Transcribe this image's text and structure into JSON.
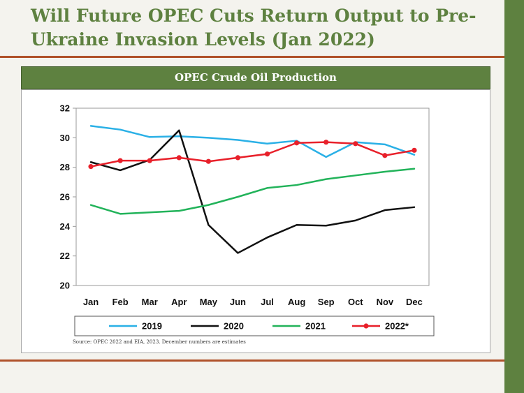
{
  "slide": {
    "title": "Will Future OPEC Cuts Return Output to Pre-Ukraine Invasion Levels (Jan 2022)",
    "source": "Source: OPEC 2022 and EIA, 2023. December numbers are estimates"
  },
  "colors": {
    "accent_green": "#5e8140",
    "rule_rust": "#b0522a",
    "series_2019": "#2ab0e6",
    "series_2020": "#111111",
    "series_2021": "#22b35a",
    "series_2022": "#e8202a"
  },
  "chart_data": {
    "type": "line",
    "title": "OPEC Crude Oil Production",
    "xlabel": "",
    "ylabel": "",
    "categories": [
      "Jan",
      "Feb",
      "Mar",
      "Apr",
      "May",
      "Jun",
      "Jul",
      "Aug",
      "Sep",
      "Oct",
      "Nov",
      "Dec"
    ],
    "ylim": [
      20,
      32
    ],
    "yticks": [
      20,
      22,
      24,
      26,
      28,
      30,
      32
    ],
    "grid": false,
    "legend": "bottom",
    "series": [
      {
        "name": "2019",
        "color": "#2ab0e6",
        "markers": false,
        "values": [
          30.8,
          30.55,
          30.05,
          30.1,
          30.0,
          29.85,
          29.6,
          29.8,
          28.7,
          29.7,
          29.55,
          28.85
        ]
      },
      {
        "name": "2020",
        "color": "#111111",
        "markers": false,
        "values": [
          28.35,
          27.8,
          28.5,
          30.5,
          24.1,
          22.2,
          23.25,
          24.1,
          24.05,
          24.4,
          25.1,
          25.3
        ]
      },
      {
        "name": "2021",
        "color": "#22b35a",
        "markers": false,
        "values": [
          25.45,
          24.85,
          24.95,
          25.05,
          25.45,
          26.0,
          26.6,
          26.8,
          27.2,
          27.45,
          27.7,
          27.9
        ]
      },
      {
        "name": "2022*",
        "color": "#e8202a",
        "markers": true,
        "values": [
          28.05,
          28.45,
          28.45,
          28.65,
          28.4,
          28.65,
          28.9,
          29.65,
          29.7,
          29.6,
          28.8,
          29.15
        ]
      }
    ]
  }
}
